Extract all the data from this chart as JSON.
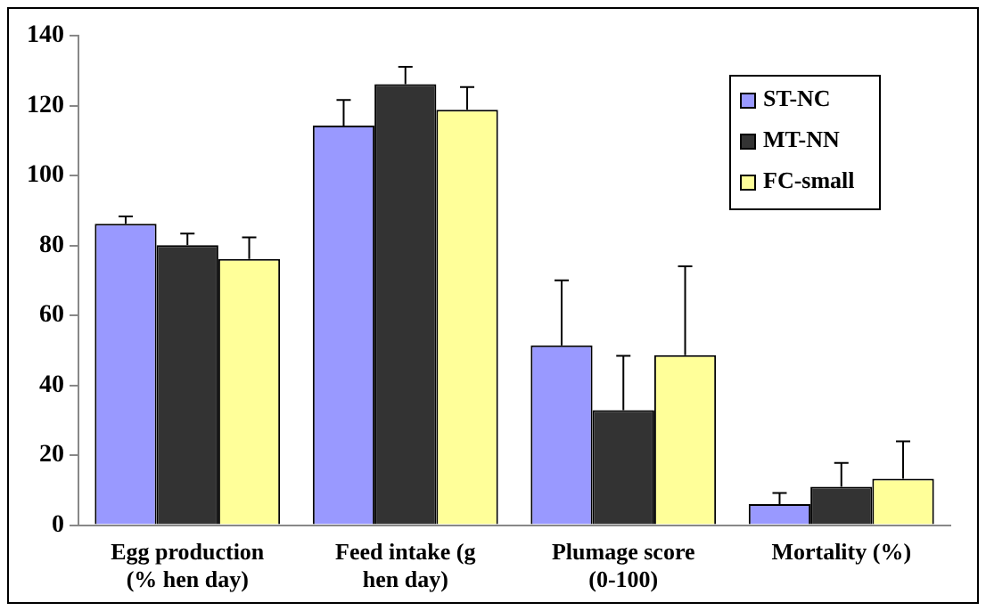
{
  "chart_data": {
    "type": "bar",
    "categories": [
      "Egg production (% hen day)",
      "Feed intake (g hen day)",
      "Plumage score (0-100)",
      "Mortality (%)"
    ],
    "series": [
      {
        "name": "ST-NC",
        "color": "#9999ff",
        "values": [
          86.2,
          114.3,
          51.4,
          6
        ],
        "errors": [
          [
            86.2,
            88.3
          ],
          [
            114.3,
            121.6
          ],
          [
            51.4,
            70
          ],
          [
            6,
            9.2
          ]
        ]
      },
      {
        "name": "MT-NN",
        "color": "#333333",
        "values": [
          80.1,
          126.1,
          32.9,
          11
        ],
        "errors": [
          [
            80.1,
            83.4
          ],
          [
            126.1,
            131.1
          ],
          [
            32.9,
            48.4
          ],
          [
            11,
            17.8
          ]
        ]
      },
      {
        "name": "FC-small",
        "color": "#ffff99",
        "values": [
          76.1,
          118.8,
          48.6,
          13.3
        ],
        "errors": [
          [
            76.1,
            82.3
          ],
          [
            118.8,
            125.3
          ],
          [
            48.6,
            74
          ],
          [
            13.3,
            24
          ]
        ]
      }
    ],
    "ylim": [
      0,
      140
    ],
    "yticks": [
      0,
      20,
      40,
      60,
      80,
      100,
      120,
      140
    ],
    "grid": false,
    "legend": "top right"
  }
}
